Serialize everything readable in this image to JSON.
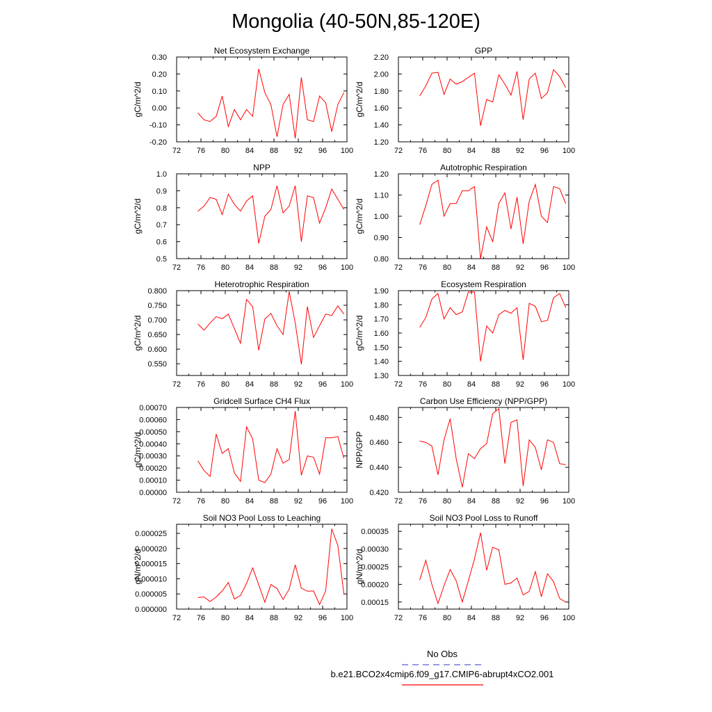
{
  "figure": {
    "title": "Mongolia (40-50N,85-120E)",
    "legend": [
      {
        "label": "No Obs",
        "color": "#5a5ad0",
        "style": "dashed"
      },
      {
        "label": "b.e21.BCO2x4cmip6.f09_g17.CMIP6-abrupt4xCO2.001",
        "color": "#ff0000",
        "style": "solid"
      }
    ],
    "series_color": "#ff0000"
  },
  "chart_data": [
    {
      "type": "line",
      "title": "Net Ecosystem Exchange",
      "ylabel": "gC/m^2/d",
      "xlim": [
        72,
        100
      ],
      "ylim": [
        -0.2,
        0.3
      ],
      "xticks": [
        "72",
        "76",
        "80",
        "84",
        "88",
        "92",
        "96",
        "100"
      ],
      "yticks": [
        "-0.20",
        "-0.10",
        "0.00",
        "0.10",
        "0.20",
        "0.30"
      ],
      "x": [
        75.5,
        76.5,
        77.5,
        78.5,
        79.5,
        80.5,
        81.5,
        82.5,
        83.5,
        84.5,
        85.5,
        86.5,
        87.5,
        88.5,
        89.5,
        90.5,
        91.5,
        92.5,
        93.5,
        94.5,
        95.5,
        96.5,
        97.5,
        98.5,
        99.5
      ],
      "values": [
        -0.03,
        -0.07,
        -0.08,
        -0.05,
        0.07,
        -0.11,
        -0.01,
        -0.07,
        -0.01,
        -0.05,
        0.23,
        0.09,
        0.02,
        -0.17,
        0.02,
        0.08,
        -0.18,
        0.18,
        -0.07,
        -0.08,
        0.07,
        0.03,
        -0.14,
        0.02,
        0.09
      ]
    },
    {
      "type": "line",
      "title": "GPP",
      "ylabel": "gC/m^2/d",
      "xlim": [
        72,
        100
      ],
      "ylim": [
        1.2,
        2.2
      ],
      "xticks": [
        "72",
        "76",
        "80",
        "84",
        "88",
        "92",
        "96",
        "100"
      ],
      "yticks": [
        "1.20",
        "1.40",
        "1.60",
        "1.80",
        "2.00",
        "2.20"
      ],
      "x": [
        75.5,
        76.5,
        77.5,
        78.5,
        79.5,
        80.5,
        81.5,
        82.5,
        83.5,
        84.5,
        85.5,
        86.5,
        87.5,
        88.5,
        89.5,
        90.5,
        91.5,
        92.5,
        93.5,
        94.5,
        95.5,
        96.5,
        97.5,
        98.5,
        99.5
      ],
      "values": [
        1.74,
        1.86,
        2.01,
        2.02,
        1.76,
        1.94,
        1.88,
        1.91,
        1.96,
        2.01,
        1.39,
        1.7,
        1.67,
        1.99,
        1.88,
        1.75,
        2.03,
        1.46,
        1.94,
        2.01,
        1.71,
        1.78,
        2.05,
        1.97,
        1.84
      ]
    },
    {
      "type": "line",
      "title": "NPP",
      "ylabel": "gC/m^2/d",
      "xlim": [
        72,
        100
      ],
      "ylim": [
        0.5,
        1.0
      ],
      "xticks": [
        "72",
        "76",
        "80",
        "84",
        "88",
        "92",
        "96",
        "100"
      ],
      "yticks": [
        "0.5",
        "0.6",
        "0.7",
        "0.8",
        "0.9",
        "1.0"
      ],
      "x": [
        75.5,
        76.5,
        77.5,
        78.5,
        79.5,
        80.5,
        81.5,
        82.5,
        83.5,
        84.5,
        85.5,
        86.5,
        87.5,
        88.5,
        89.5,
        90.5,
        91.5,
        92.5,
        93.5,
        94.5,
        95.5,
        96.5,
        97.5,
        98.5,
        99.5
      ],
      "values": [
        0.78,
        0.81,
        0.86,
        0.85,
        0.76,
        0.88,
        0.82,
        0.78,
        0.84,
        0.87,
        0.59,
        0.75,
        0.79,
        0.93,
        0.77,
        0.81,
        0.93,
        0.6,
        0.87,
        0.86,
        0.71,
        0.8,
        0.91,
        0.85,
        0.79
      ]
    },
    {
      "type": "line",
      "title": "Autotrophic Respiration",
      "ylabel": "gC/m^2/d",
      "xlim": [
        72,
        100
      ],
      "ylim": [
        0.8,
        1.2
      ],
      "xticks": [
        "72",
        "76",
        "80",
        "84",
        "88",
        "92",
        "96",
        "100"
      ],
      "yticks": [
        "0.80",
        "0.90",
        "1.00",
        "1.10",
        "1.20"
      ],
      "x": [
        75.5,
        76.5,
        77.5,
        78.5,
        79.5,
        80.5,
        81.5,
        82.5,
        83.5,
        84.5,
        85.5,
        86.5,
        87.5,
        88.5,
        89.5,
        90.5,
        91.5,
        92.5,
        93.5,
        94.5,
        95.5,
        96.5,
        97.5,
        98.5,
        99.5
      ],
      "values": [
        0.96,
        1.05,
        1.15,
        1.17,
        1.0,
        1.06,
        1.06,
        1.12,
        1.12,
        1.14,
        0.8,
        0.95,
        0.88,
        1.06,
        1.11,
        0.94,
        1.09,
        0.87,
        1.07,
        1.15,
        1.0,
        0.97,
        1.14,
        1.13,
        1.06
      ]
    },
    {
      "type": "line",
      "title": "Heterotrophic Respiration",
      "ylabel": "gC/m^2/d",
      "xlim": [
        72,
        100
      ],
      "ylim": [
        0.51,
        0.8
      ],
      "xticks": [
        "72",
        "76",
        "80",
        "84",
        "88",
        "92",
        "96",
        "100"
      ],
      "yticks": [
        "0.550",
        "0.600",
        "0.650",
        "0.700",
        "0.750",
        "0.800"
      ],
      "ytick_values": [
        0.55,
        0.6,
        0.65,
        0.7,
        0.75,
        0.8
      ],
      "x": [
        75.5,
        76.5,
        77.5,
        78.5,
        79.5,
        80.5,
        81.5,
        82.5,
        83.5,
        84.5,
        85.5,
        86.5,
        87.5,
        88.5,
        89.5,
        90.5,
        91.5,
        92.5,
        93.5,
        94.5,
        95.5,
        96.5,
        97.5,
        98.5,
        99.5
      ],
      "values": [
        0.686,
        0.665,
        0.689,
        0.711,
        0.704,
        0.72,
        0.67,
        0.62,
        0.77,
        0.745,
        0.596,
        0.703,
        0.722,
        0.68,
        0.65,
        0.797,
        0.69,
        0.548,
        0.745,
        0.64,
        0.68,
        0.72,
        0.715,
        0.748,
        0.72
      ]
    },
    {
      "type": "line",
      "title": "Ecosystem Respiration",
      "ylabel": "gC/m^2/d",
      "xlim": [
        72,
        100
      ],
      "ylim": [
        1.3,
        1.9
      ],
      "xticks": [
        "72",
        "76",
        "80",
        "84",
        "88",
        "92",
        "96",
        "100"
      ],
      "yticks": [
        "1.30",
        "1.40",
        "1.50",
        "1.60",
        "1.70",
        "1.80",
        "1.90"
      ],
      "x": [
        75.5,
        76.5,
        77.5,
        78.5,
        79.5,
        80.5,
        81.5,
        82.5,
        83.5,
        84.5,
        85.5,
        86.5,
        87.5,
        88.5,
        89.5,
        90.5,
        91.5,
        92.5,
        93.5,
        94.5,
        95.5,
        96.5,
        97.5,
        98.5,
        99.5
      ],
      "values": [
        1.64,
        1.71,
        1.84,
        1.88,
        1.7,
        1.78,
        1.73,
        1.75,
        1.89,
        1.89,
        1.4,
        1.65,
        1.6,
        1.73,
        1.76,
        1.74,
        1.78,
        1.41,
        1.81,
        1.79,
        1.68,
        1.69,
        1.85,
        1.88,
        1.78
      ]
    },
    {
      "type": "line",
      "title": "Gridcell Surface CH4 Flux",
      "ylabel": "gC/m^2/d",
      "xlim": [
        72,
        100
      ],
      "ylim": [
        0,
        0.0007
      ],
      "xticks": [
        "72",
        "76",
        "80",
        "84",
        "88",
        "92",
        "96",
        "100"
      ],
      "yticks": [
        "0.00000",
        "0.00010",
        "0.00020",
        "0.00030",
        "0.00040",
        "0.00050",
        "0.00060",
        "0.00070"
      ],
      "x": [
        75.5,
        76.5,
        77.5,
        78.5,
        79.5,
        80.5,
        81.5,
        82.5,
        83.5,
        84.5,
        85.5,
        86.5,
        87.5,
        88.5,
        89.5,
        90.5,
        91.5,
        92.5,
        93.5,
        94.5,
        95.5,
        96.5,
        97.5,
        98.5,
        99.5
      ],
      "values": [
        0.00026,
        0.00018,
        0.00013,
        0.00048,
        0.00032,
        0.00036,
        0.00016,
        9e-05,
        0.00054,
        0.00044,
        0.0001,
        8e-05,
        0.00015,
        0.00036,
        0.00024,
        0.00027,
        0.00067,
        0.00014,
        0.0003,
        0.00029,
        0.00015,
        0.00045,
        0.00045,
        0.00046,
        0.00028
      ]
    },
    {
      "type": "line",
      "title": "Carbon Use Efficiency (NPP/GPP)",
      "ylabel": "NPP/GPP",
      "xlim": [
        72,
        100
      ],
      "ylim": [
        0.42,
        0.488
      ],
      "xticks": [
        "72",
        "76",
        "80",
        "84",
        "88",
        "92",
        "96",
        "100"
      ],
      "yticks": [
        "0.420",
        "0.440",
        "0.460",
        "0.480"
      ],
      "ytick_values": [
        0.42,
        0.44,
        0.46,
        0.48
      ],
      "x": [
        75.5,
        76.5,
        77.5,
        78.5,
        79.5,
        80.5,
        81.5,
        82.5,
        83.5,
        84.5,
        85.5,
        86.5,
        87.5,
        88.5,
        89.5,
        90.5,
        91.5,
        92.5,
        93.5,
        94.5,
        95.5,
        96.5,
        97.5,
        98.5,
        99.5
      ],
      "values": [
        0.461,
        0.46,
        0.457,
        0.434,
        0.462,
        0.479,
        0.447,
        0.424,
        0.451,
        0.447,
        0.455,
        0.459,
        0.483,
        0.487,
        0.443,
        0.476,
        0.478,
        0.425,
        0.462,
        0.456,
        0.438,
        0.462,
        0.46,
        0.443,
        0.442
      ]
    },
    {
      "type": "line",
      "title": "Soil NO3 Pool Loss to Leaching",
      "ylabel": "gN/m^2/d",
      "xlim": [
        72,
        100
      ],
      "ylim": [
        0,
        2.8e-05
      ],
      "xticks": [
        "72",
        "76",
        "80",
        "84",
        "88",
        "92",
        "96",
        "100"
      ],
      "yticks": [
        "0.000000",
        "0.000005",
        "0.000010",
        "0.000015",
        "0.000020",
        "0.000025"
      ],
      "ytick_values": [
        0,
        5e-06,
        1e-05,
        1.5e-05,
        2e-05,
        2.5e-05
      ],
      "x": [
        75.5,
        76.5,
        77.5,
        78.5,
        79.5,
        80.5,
        81.5,
        82.5,
        83.5,
        84.5,
        85.5,
        86.5,
        87.5,
        88.5,
        89.5,
        90.5,
        91.5,
        92.5,
        93.5,
        94.5,
        95.5,
        96.5,
        97.5,
        98.5,
        99.5
      ],
      "values": [
        3.8e-06,
        4e-06,
        2.5e-06,
        4e-06,
        6e-06,
        8.8e-06,
        3.3e-06,
        4.5e-06,
        8.5e-06,
        1.36e-05,
        8e-06,
        2.3e-06,
        8.1e-06,
        6.8e-06,
        3.2e-06,
        6.6e-06,
        1.46e-05,
        6.9e-06,
        5.9e-06,
        6e-06,
        1.5e-06,
        6e-06,
        2.65e-05,
        2.1e-05,
        5e-06
      ]
    },
    {
      "type": "line",
      "title": "Soil NO3 Pool Loss to Runoff",
      "ylabel": "gN/m^2/d",
      "xlim": [
        72,
        100
      ],
      "ylim": [
        0.00013,
        0.00037
      ],
      "xticks": [
        "72",
        "76",
        "80",
        "84",
        "88",
        "92",
        "96",
        "100"
      ],
      "yticks": [
        "0.00015",
        "0.00020",
        "0.00025",
        "0.00030",
        "0.00035"
      ],
      "ytick_values": [
        0.00015,
        0.0002,
        0.00025,
        0.0003,
        0.00035
      ],
      "x": [
        75.5,
        76.5,
        77.5,
        78.5,
        79.5,
        80.5,
        81.5,
        82.5,
        83.5,
        84.5,
        85.5,
        86.5,
        87.5,
        88.5,
        89.5,
        90.5,
        91.5,
        92.5,
        93.5,
        94.5,
        95.5,
        96.5,
        97.5,
        98.5,
        99.5
      ],
      "values": [
        0.000212,
        0.000268,
        0.0002,
        0.000146,
        0.000196,
        0.000242,
        0.00021,
        0.00015,
        0.00021,
        0.000272,
        0.000346,
        0.00024,
        0.000305,
        0.000298,
        0.0002,
        0.000204,
        0.000218,
        0.00017,
        0.00018,
        0.000236,
        0.000165,
        0.00023,
        0.000208,
        0.00016,
        0.00015
      ]
    }
  ]
}
